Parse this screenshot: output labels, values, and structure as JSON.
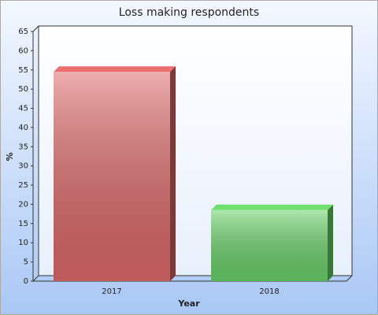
{
  "chart_data": {
    "type": "bar",
    "title": "Loss making respondents",
    "x_label": "Year",
    "y_label": "%",
    "categories": [
      "2017",
      "2018"
    ],
    "values": [
      54.5,
      18.5
    ],
    "colors": [
      "#e06a6a",
      "#6ad46a"
    ],
    "ylim": [
      0,
      65
    ],
    "yticks": [
      0,
      5,
      10,
      15,
      20,
      25,
      30,
      35,
      40,
      45,
      50,
      55,
      60,
      65
    ]
  }
}
